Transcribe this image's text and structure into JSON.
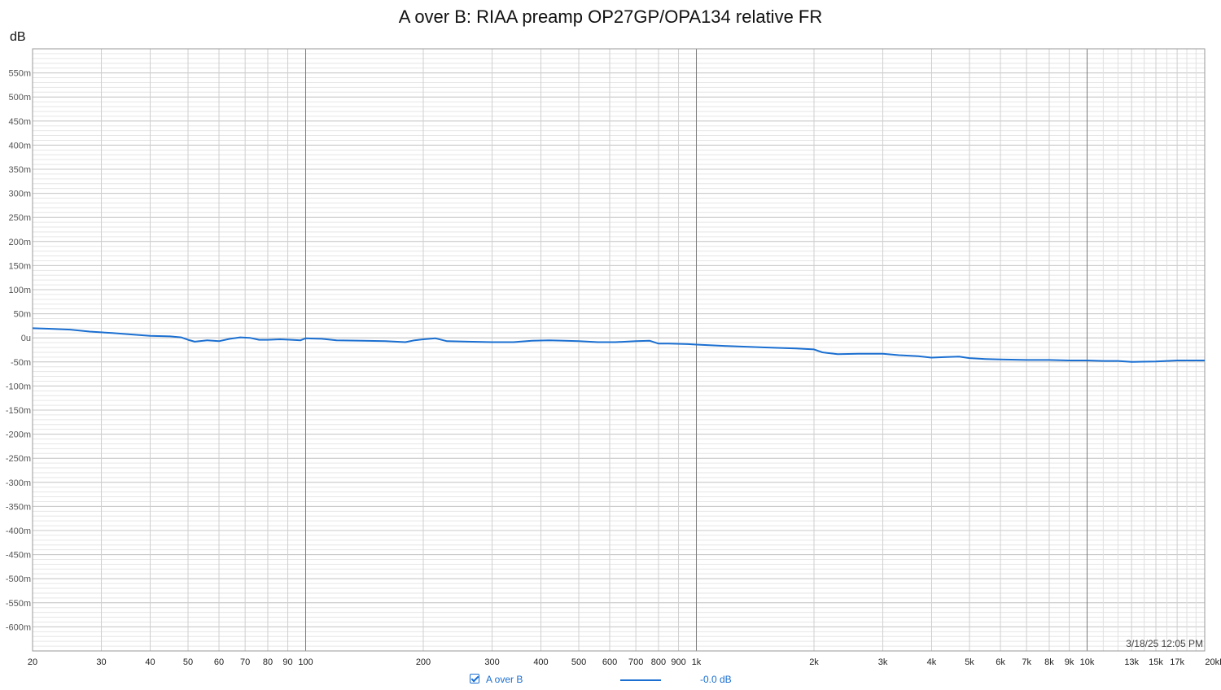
{
  "chart_data": {
    "type": "line",
    "title": "A over B: RIAA preamp OP27GP/OPA134 relative FR",
    "ylabel": "dB",
    "xscale": "log",
    "xlim": [
      20,
      20000
    ],
    "ylim": [
      -0.65,
      0.6
    ],
    "grid": true,
    "y_ticks": [
      {
        "value": 0.55,
        "label": "550m"
      },
      {
        "value": 0.5,
        "label": "500m"
      },
      {
        "value": 0.45,
        "label": "450m"
      },
      {
        "value": 0.4,
        "label": "400m"
      },
      {
        "value": 0.35,
        "label": "350m"
      },
      {
        "value": 0.3,
        "label": "300m"
      },
      {
        "value": 0.25,
        "label": "250m"
      },
      {
        "value": 0.2,
        "label": "200m"
      },
      {
        "value": 0.15,
        "label": "150m"
      },
      {
        "value": 0.1,
        "label": "100m"
      },
      {
        "value": 0.05,
        "label": "50m"
      },
      {
        "value": 0,
        "label": "0u"
      },
      {
        "value": -0.05,
        "label": "-50m"
      },
      {
        "value": -0.1,
        "label": "-100m"
      },
      {
        "value": -0.15,
        "label": "-150m"
      },
      {
        "value": -0.2,
        "label": "-200m"
      },
      {
        "value": -0.25,
        "label": "-250m"
      },
      {
        "value": -0.3,
        "label": "-300m"
      },
      {
        "value": -0.35,
        "label": "-350m"
      },
      {
        "value": -0.4,
        "label": "-400m"
      },
      {
        "value": -0.45,
        "label": "-450m"
      },
      {
        "value": -0.5,
        "label": "-500m"
      },
      {
        "value": -0.55,
        "label": "-550m"
      },
      {
        "value": -0.6,
        "label": "-600m"
      }
    ],
    "x_ticks": [
      {
        "value": 20,
        "label": "20"
      },
      {
        "value": 30,
        "label": "30"
      },
      {
        "value": 40,
        "label": "40"
      },
      {
        "value": 50,
        "label": "50"
      },
      {
        "value": 60,
        "label": "60"
      },
      {
        "value": 70,
        "label": "70"
      },
      {
        "value": 80,
        "label": "80"
      },
      {
        "value": 90,
        "label": "90"
      },
      {
        "value": 100,
        "label": "100"
      },
      {
        "value": 200,
        "label": "200"
      },
      {
        "value": 300,
        "label": "300"
      },
      {
        "value": 400,
        "label": "400"
      },
      {
        "value": 500,
        "label": "500"
      },
      {
        "value": 600,
        "label": "600"
      },
      {
        "value": 700,
        "label": "700"
      },
      {
        "value": 800,
        "label": "800"
      },
      {
        "value": 900,
        "label": "900"
      },
      {
        "value": 1000,
        "label": "1k"
      },
      {
        "value": 2000,
        "label": "2k"
      },
      {
        "value": 3000,
        "label": "3k"
      },
      {
        "value": 4000,
        "label": "4k"
      },
      {
        "value": 5000,
        "label": "5k"
      },
      {
        "value": 6000,
        "label": "6k"
      },
      {
        "value": 7000,
        "label": "7k"
      },
      {
        "value": 8000,
        "label": "8k"
      },
      {
        "value": 9000,
        "label": "9k"
      },
      {
        "value": 10000,
        "label": "10k"
      },
      {
        "value": 13000,
        "label": "13k"
      },
      {
        "value": 15000,
        "label": "15k"
      },
      {
        "value": 17000,
        "label": "17k"
      },
      {
        "value": 20000,
        "label": "20kHz"
      }
    ],
    "series": [
      {
        "name": "A over B",
        "color": "#1a6fd1",
        "x": [
          20,
          22,
          25,
          28,
          32,
          36,
          40,
          45,
          48,
          50,
          52,
          56,
          60,
          64,
          68,
          72,
          76,
          80,
          86,
          92,
          97,
          100,
          110,
          120,
          140,
          160,
          180,
          190,
          200,
          215,
          230,
          260,
          300,
          340,
          380,
          420,
          460,
          500,
          560,
          620,
          700,
          760,
          800,
          850,
          950,
          1000,
          1200,
          1500,
          1800,
          2000,
          2100,
          2300,
          2600,
          3000,
          3300,
          3700,
          4000,
          4300,
          4700,
          5000,
          5500,
          6000,
          7000,
          8000,
          9000,
          10000,
          11000,
          12000,
          13000,
          15000,
          17000,
          20000
        ],
        "y": [
          0.02,
          0.019,
          0.017,
          0.013,
          0.01,
          0.007,
          0.004,
          0.003,
          0.001,
          -0.004,
          -0.008,
          -0.005,
          -0.007,
          -0.002,
          0.001,
          0.0,
          -0.004,
          -0.004,
          -0.003,
          -0.004,
          -0.005,
          -0.001,
          -0.002,
          -0.005,
          -0.006,
          -0.007,
          -0.009,
          -0.005,
          -0.003,
          -0.001,
          -0.007,
          -0.008,
          -0.009,
          -0.009,
          -0.006,
          -0.005,
          -0.006,
          -0.007,
          -0.009,
          -0.009,
          -0.007,
          -0.006,
          -0.012,
          -0.012,
          -0.013,
          -0.014,
          -0.017,
          -0.02,
          -0.022,
          -0.024,
          -0.03,
          -0.034,
          -0.033,
          -0.033,
          -0.036,
          -0.038,
          -0.041,
          -0.04,
          -0.039,
          -0.042,
          -0.044,
          -0.045,
          -0.046,
          -0.046,
          -0.047,
          -0.047,
          -0.048,
          -0.048,
          -0.05,
          -0.049,
          -0.047,
          -0.047
        ]
      }
    ],
    "legend": {
      "position": "bottom",
      "series_name": "A over B",
      "value_readout": "-0.0 dB",
      "checked": true
    },
    "timestamp": "3/18/25 12:05 PM"
  }
}
